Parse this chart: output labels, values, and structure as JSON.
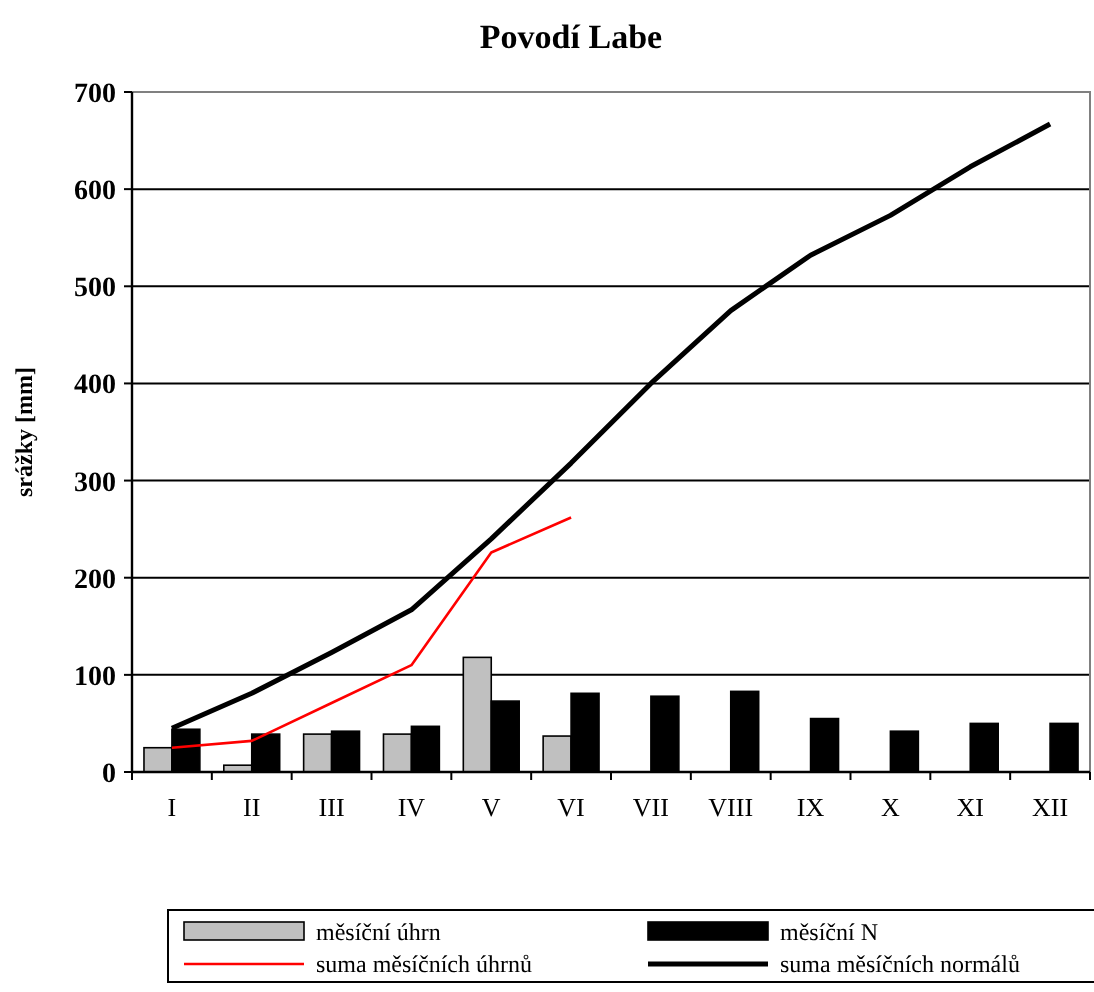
{
  "chart_data": {
    "type": "bar",
    "title": "Povodí Labe",
    "ylabel": "srážky [mm]",
    "categories": [
      "I",
      "II",
      "III",
      "IV",
      "V",
      "VI",
      "VII",
      "VIII",
      "IX",
      "X",
      "XI",
      "XII"
    ],
    "series": [
      {
        "name": "měsíční úhrn",
        "color": "#c0c0c0",
        "values": [
          25,
          7,
          39,
          39,
          118,
          37,
          null,
          null,
          null,
          null,
          null,
          null
        ]
      },
      {
        "name": "měsíční N",
        "color": "#000000",
        "values": [
          44,
          39,
          42,
          47,
          73,
          81,
          78,
          83,
          55,
          42,
          50,
          50
        ]
      },
      {
        "name": "suma měsíčních úhrnů",
        "type": "line",
        "color": "#ff0000",
        "values": [
          25,
          32,
          71,
          110,
          226,
          262,
          null,
          null,
          null,
          null,
          null,
          null
        ]
      },
      {
        "name": "suma měsíčních normálů",
        "type": "line",
        "color": "#000000",
        "values": [
          45,
          81,
          123,
          167,
          240,
          318,
          400,
          475,
          532,
          573,
          623,
          667
        ]
      }
    ],
    "ylim": [
      0,
      700
    ],
    "yticks": [
      0,
      100,
      200,
      300,
      400,
      500,
      600,
      700
    ],
    "grid": "y",
    "legend": "bottom",
    "marker": "none",
    "line_style": "solid"
  }
}
